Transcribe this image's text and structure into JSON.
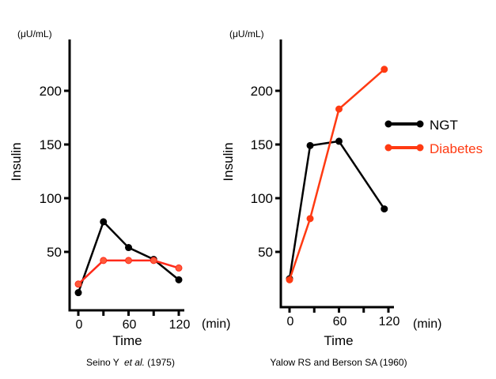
{
  "chart_data": [
    {
      "type": "line",
      "unit_label": "(μU/mL)",
      "ylabel": "Insulin",
      "xlabel": "Time",
      "x_unit": "(min)",
      "caption": {
        "author": "Seino Y ",
        "etal": "et al.",
        "year": " (1975)"
      },
      "ylim": [
        0,
        230
      ],
      "xlim": [
        -10,
        125
      ],
      "yticks": [
        50,
        100,
        150,
        200
      ],
      "ytick_labels": [
        "50",
        "100",
        "150",
        "200"
      ],
      "xticks": [
        0,
        30,
        60,
        90,
        120
      ],
      "xtick_labels": [
        "0",
        "",
        "60",
        "",
        "120"
      ],
      "series": [
        {
          "name": "NGT",
          "color": "#000000",
          "x": [
            0,
            30,
            60,
            90,
            120
          ],
          "y": [
            12,
            78,
            54,
            43,
            24
          ]
        },
        {
          "name": "Diabetes",
          "color": "#ff2a1a",
          "x": [
            0,
            30,
            60,
            90,
            120
          ],
          "y": [
            20,
            42,
            42,
            42,
            35
          ]
        }
      ]
    },
    {
      "type": "line",
      "unit_label": "(μU/mL)",
      "ylabel": "Insulin",
      "xlabel": "Time",
      "x_unit": "(min)",
      "caption": {
        "author": "Yalow RS and Berson SA",
        "etal": "",
        "year": " (1960)"
      },
      "ylim": [
        0,
        230
      ],
      "xlim": [
        -10,
        125
      ],
      "yticks": [
        50,
        100,
        150,
        200
      ],
      "ytick_labels": [
        "50",
        "100",
        "150",
        "200"
      ],
      "xticks": [
        0,
        30,
        60,
        90,
        120
      ],
      "xtick_labels": [
        "0",
        "",
        "60",
        "",
        "120"
      ],
      "series": [
        {
          "name": "NGT",
          "color": "#000000",
          "x": [
            0,
            25,
            60,
            115
          ],
          "y": [
            25,
            149,
            153,
            90
          ]
        },
        {
          "name": "Diabetes",
          "color": "#ff3a12",
          "x": [
            0,
            25,
            60,
            115
          ],
          "y": [
            24,
            81,
            183,
            220
          ]
        }
      ],
      "legend": {
        "position": "right",
        "entries": [
          {
            "label": "NGT",
            "color": "#000000"
          },
          {
            "label": "Diabetes",
            "color": "#ff3a12"
          }
        ]
      }
    }
  ]
}
